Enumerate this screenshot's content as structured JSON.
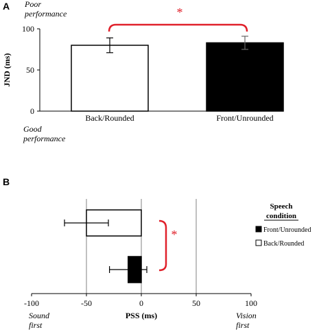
{
  "chart_data": [
    {
      "panel_label": "A",
      "type": "bar",
      "categories": [
        "Back/Rounded",
        "Front/Unrounded"
      ],
      "values": [
        80,
        83
      ],
      "errors": [
        9,
        8
      ],
      "bar_colors": [
        "#ffffff",
        "#000000"
      ],
      "ylabel": "JND (ms)",
      "ylim": [
        0,
        100
      ],
      "yticks": [
        "0",
        "50",
        "100"
      ],
      "top_annotation": [
        "Poor",
        "performance"
      ],
      "bottom_annotation": [
        "Good",
        "performance"
      ],
      "significance": "*",
      "significance_color": "#e0202a",
      "grid": false
    },
    {
      "panel_label": "B",
      "type": "bar",
      "orientation": "horizontal",
      "categories": [
        "Back/Rounded",
        "Front/Unrounded"
      ],
      "values": [
        -50,
        -12
      ],
      "errors": [
        20,
        17
      ],
      "bar_colors": [
        "#ffffff",
        "#000000"
      ],
      "xlabel": "PSS (ms)",
      "xlim": [
        -100,
        100
      ],
      "xticks": [
        "-100",
        "-50",
        "0",
        "50",
        "100"
      ],
      "gridlines_x": [
        -50,
        0,
        50
      ],
      "left_annotation": [
        "Sound",
        "first"
      ],
      "right_annotation": [
        "Vision",
        "first"
      ],
      "legend_title": [
        "Speech",
        "condition"
      ],
      "legend": [
        {
          "label": "Front/Unrounded",
          "color": "#000000"
        },
        {
          "label": "Back/Rounded",
          "color": "#ffffff"
        }
      ],
      "legend_position": "right",
      "significance": "*",
      "significance_color": "#e0202a"
    }
  ]
}
